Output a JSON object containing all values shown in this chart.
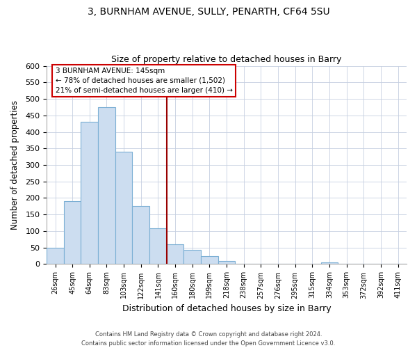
{
  "title1": "3, BURNHAM AVENUE, SULLY, PENARTH, CF64 5SU",
  "title2": "Size of property relative to detached houses in Barry",
  "xlabel": "Distribution of detached houses by size in Barry",
  "ylabel": "Number of detached properties",
  "bin_labels": [
    "26sqm",
    "45sqm",
    "64sqm",
    "83sqm",
    "103sqm",
    "122sqm",
    "141sqm",
    "160sqm",
    "180sqm",
    "199sqm",
    "218sqm",
    "238sqm",
    "257sqm",
    "276sqm",
    "295sqm",
    "315sqm",
    "334sqm",
    "353sqm",
    "372sqm",
    "392sqm",
    "411sqm"
  ],
  "bar_heights": [
    50,
    190,
    430,
    475,
    340,
    175,
    108,
    60,
    44,
    25,
    10,
    0,
    0,
    0,
    0,
    0,
    5,
    0,
    0,
    0,
    0
  ],
  "bar_color": "#ccddf0",
  "bar_edge_color": "#7bafd4",
  "vline_position": 6.5,
  "vline_color": "#990000",
  "annotation_title": "3 BURNHAM AVENUE: 145sqm",
  "annotation_line1": "← 78% of detached houses are smaller (1,502)",
  "annotation_line2": "21% of semi-detached houses are larger (410) →",
  "annotation_box_color": "#ffffff",
  "annotation_box_edge": "#cc0000",
  "ylim": [
    0,
    600
  ],
  "yticks": [
    0,
    50,
    100,
    150,
    200,
    250,
    300,
    350,
    400,
    450,
    500,
    550,
    600
  ],
  "footer1": "Contains HM Land Registry data © Crown copyright and database right 2024.",
  "footer2": "Contains public sector information licensed under the Open Government Licence v3.0.",
  "bg_color": "#ffffff",
  "grid_color": "#c5cfe0"
}
